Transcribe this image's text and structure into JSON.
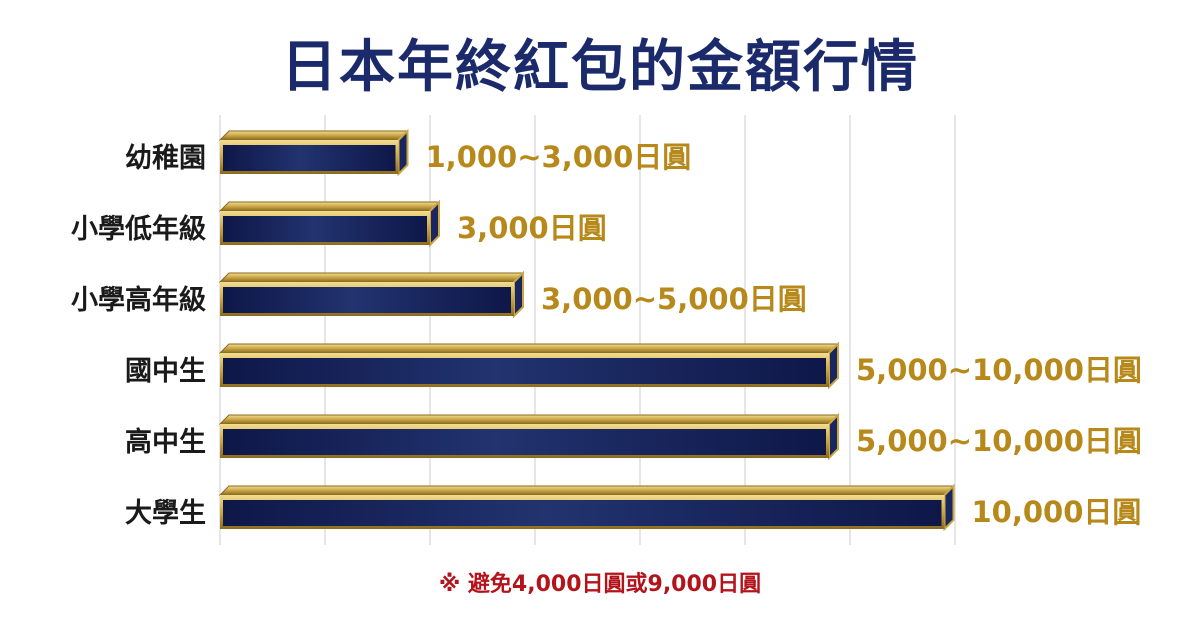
{
  "title": "日本年終紅包的金額行情",
  "footnote": "※ 避免4,000日圓或9,000日圓",
  "colors": {
    "bar_fill_dark": "#0e1748",
    "bar_fill_light": "#22336f",
    "bar_gold": "#c9a646",
    "value_text": "#b7891a",
    "title_text": "#1b2a6b",
    "footnote_text": "#b3141c",
    "grid": "#dddddd"
  },
  "chart_data": {
    "type": "bar",
    "orientation": "horizontal",
    "title": "日本年終紅包的金額行情",
    "categories": [
      "幼稚園",
      "小學低年級",
      "小學高年級",
      "國中生",
      "高中生",
      "大學生"
    ],
    "values": [
      1.7,
      2.0,
      2.8,
      5.8,
      5.8,
      6.9
    ],
    "value_labels": [
      "1,000~3,000日圓",
      "3,000日圓",
      "3,000~5,000日圓",
      "5,000~10,000日圓",
      "5,000~10,000日圓",
      "10,000日圓"
    ],
    "xlim": [
      0,
      7
    ],
    "grid": true,
    "legend": "none",
    "style": "3d"
  }
}
